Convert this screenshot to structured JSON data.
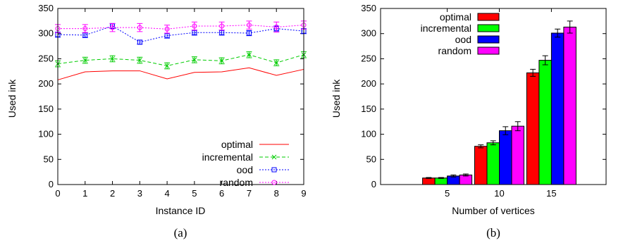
{
  "chart_data": [
    {
      "type": "line",
      "xlabel": "Instance ID",
      "ylabel": "Used ink",
      "x": [
        0,
        1,
        2,
        3,
        4,
        5,
        6,
        7,
        8,
        9
      ],
      "xlim": [
        0,
        9
      ],
      "ylim": [
        0,
        350
      ],
      "yticks": [
        0,
        50,
        100,
        150,
        200,
        250,
        300,
        350
      ],
      "caption": "(a)",
      "legend_position": "bottom-right",
      "series": [
        {
          "name": "optimal",
          "color": "#ff0000",
          "marker": "none",
          "dash": "solid",
          "errors": false,
          "values": [
            208,
            224,
            226,
            226,
            210,
            223,
            224,
            232,
            217,
            229
          ]
        },
        {
          "name": "incremental",
          "color": "#00cc00",
          "marker": "x",
          "dash": "dashed",
          "errors": true,
          "values": [
            240,
            247,
            250,
            247,
            236,
            248,
            246,
            258,
            242,
            258
          ],
          "err": [
            6,
            6,
            6,
            6,
            6,
            6,
            6,
            6,
            6,
            6
          ]
        },
        {
          "name": "ood",
          "color": "#0000ff",
          "marker": "square",
          "dash": "dotted",
          "errors": true,
          "values": [
            298,
            297,
            315,
            283,
            296,
            302,
            302,
            301,
            310,
            305
          ],
          "err": [
            5,
            5,
            5,
            4,
            5,
            5,
            5,
            5,
            5,
            5
          ]
        },
        {
          "name": "random",
          "color": "#ff00ff",
          "marker": "circle",
          "dash": "dotted",
          "errors": true,
          "values": [
            310,
            310,
            312,
            312,
            309,
            315,
            315,
            317,
            313,
            317
          ],
          "err": [
            8,
            8,
            8,
            8,
            8,
            8,
            8,
            8,
            10,
            8
          ]
        }
      ]
    },
    {
      "type": "bar",
      "xlabel": "Number of vertices",
      "ylabel": "Used ink",
      "categories": [
        "5",
        "10",
        "15"
      ],
      "ylim": [
        0,
        350
      ],
      "yticks": [
        0,
        50,
        100,
        150,
        200,
        250,
        300,
        350
      ],
      "caption": "(b)",
      "legend_position": "top-left",
      "series": [
        {
          "name": "optimal",
          "color": "#ff0000",
          "values": [
            13,
            76,
            222
          ],
          "err": [
            1,
            3,
            7
          ]
        },
        {
          "name": "incremental",
          "color": "#00ff00",
          "values": [
            13,
            83,
            247
          ],
          "err": [
            1,
            4,
            9
          ]
        },
        {
          "name": "ood",
          "color": "#0000ff",
          "values": [
            17,
            107,
            301
          ],
          "err": [
            2,
            8,
            8
          ]
        },
        {
          "name": "random",
          "color": "#ff00ff",
          "values": [
            19,
            116,
            313
          ],
          "err": [
            2,
            9,
            12
          ]
        }
      ]
    }
  ]
}
